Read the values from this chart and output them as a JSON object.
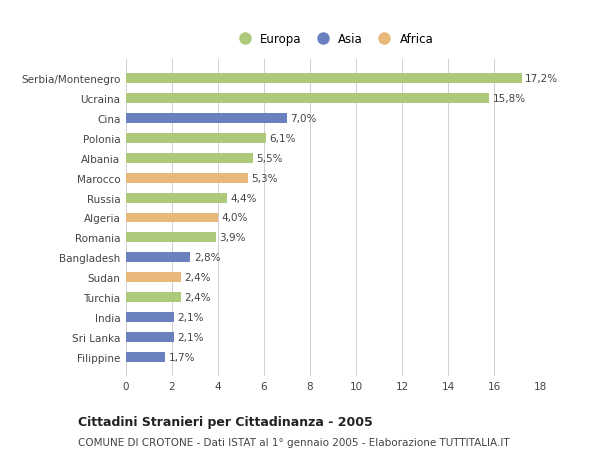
{
  "categories": [
    "Serbia/Montenegro",
    "Ucraina",
    "Cina",
    "Polonia",
    "Albania",
    "Marocco",
    "Russia",
    "Algeria",
    "Romania",
    "Bangladesh",
    "Sudan",
    "Turchia",
    "India",
    "Sri Lanka",
    "Filippine"
  ],
  "values": [
    17.2,
    15.8,
    7.0,
    6.1,
    5.5,
    5.3,
    4.4,
    4.0,
    3.9,
    2.8,
    2.4,
    2.4,
    2.1,
    2.1,
    1.7
  ],
  "labels": [
    "17,2%",
    "15,8%",
    "7,0%",
    "6,1%",
    "5,5%",
    "5,3%",
    "4,4%",
    "4,0%",
    "3,9%",
    "2,8%",
    "2,4%",
    "2,4%",
    "2,1%",
    "2,1%",
    "1,7%"
  ],
  "continents": [
    "Europa",
    "Europa",
    "Asia",
    "Europa",
    "Europa",
    "Africa",
    "Europa",
    "Africa",
    "Europa",
    "Asia",
    "Africa",
    "Europa",
    "Asia",
    "Asia",
    "Asia"
  ],
  "colors": {
    "Europa": "#adc97a",
    "Asia": "#6b80bf",
    "Africa": "#e8b87a"
  },
  "background_color": "#ffffff",
  "grid_color": "#d0d0d0",
  "title": "Cittadini Stranieri per Cittadinanza - 2005",
  "subtitle": "COMUNE DI CROTONE - Dati ISTAT al 1° gennaio 2005 - Elaborazione TUTTITALIA.IT",
  "xlim": [
    0,
    18
  ],
  "xticks": [
    0,
    2,
    4,
    6,
    8,
    10,
    12,
    14,
    16,
    18
  ],
  "bar_height": 0.5,
  "text_color": "#444444",
  "title_fontsize": 9,
  "subtitle_fontsize": 7.5,
  "label_fontsize": 7.5,
  "tick_fontsize": 7.5,
  "legend_fontsize": 8.5
}
